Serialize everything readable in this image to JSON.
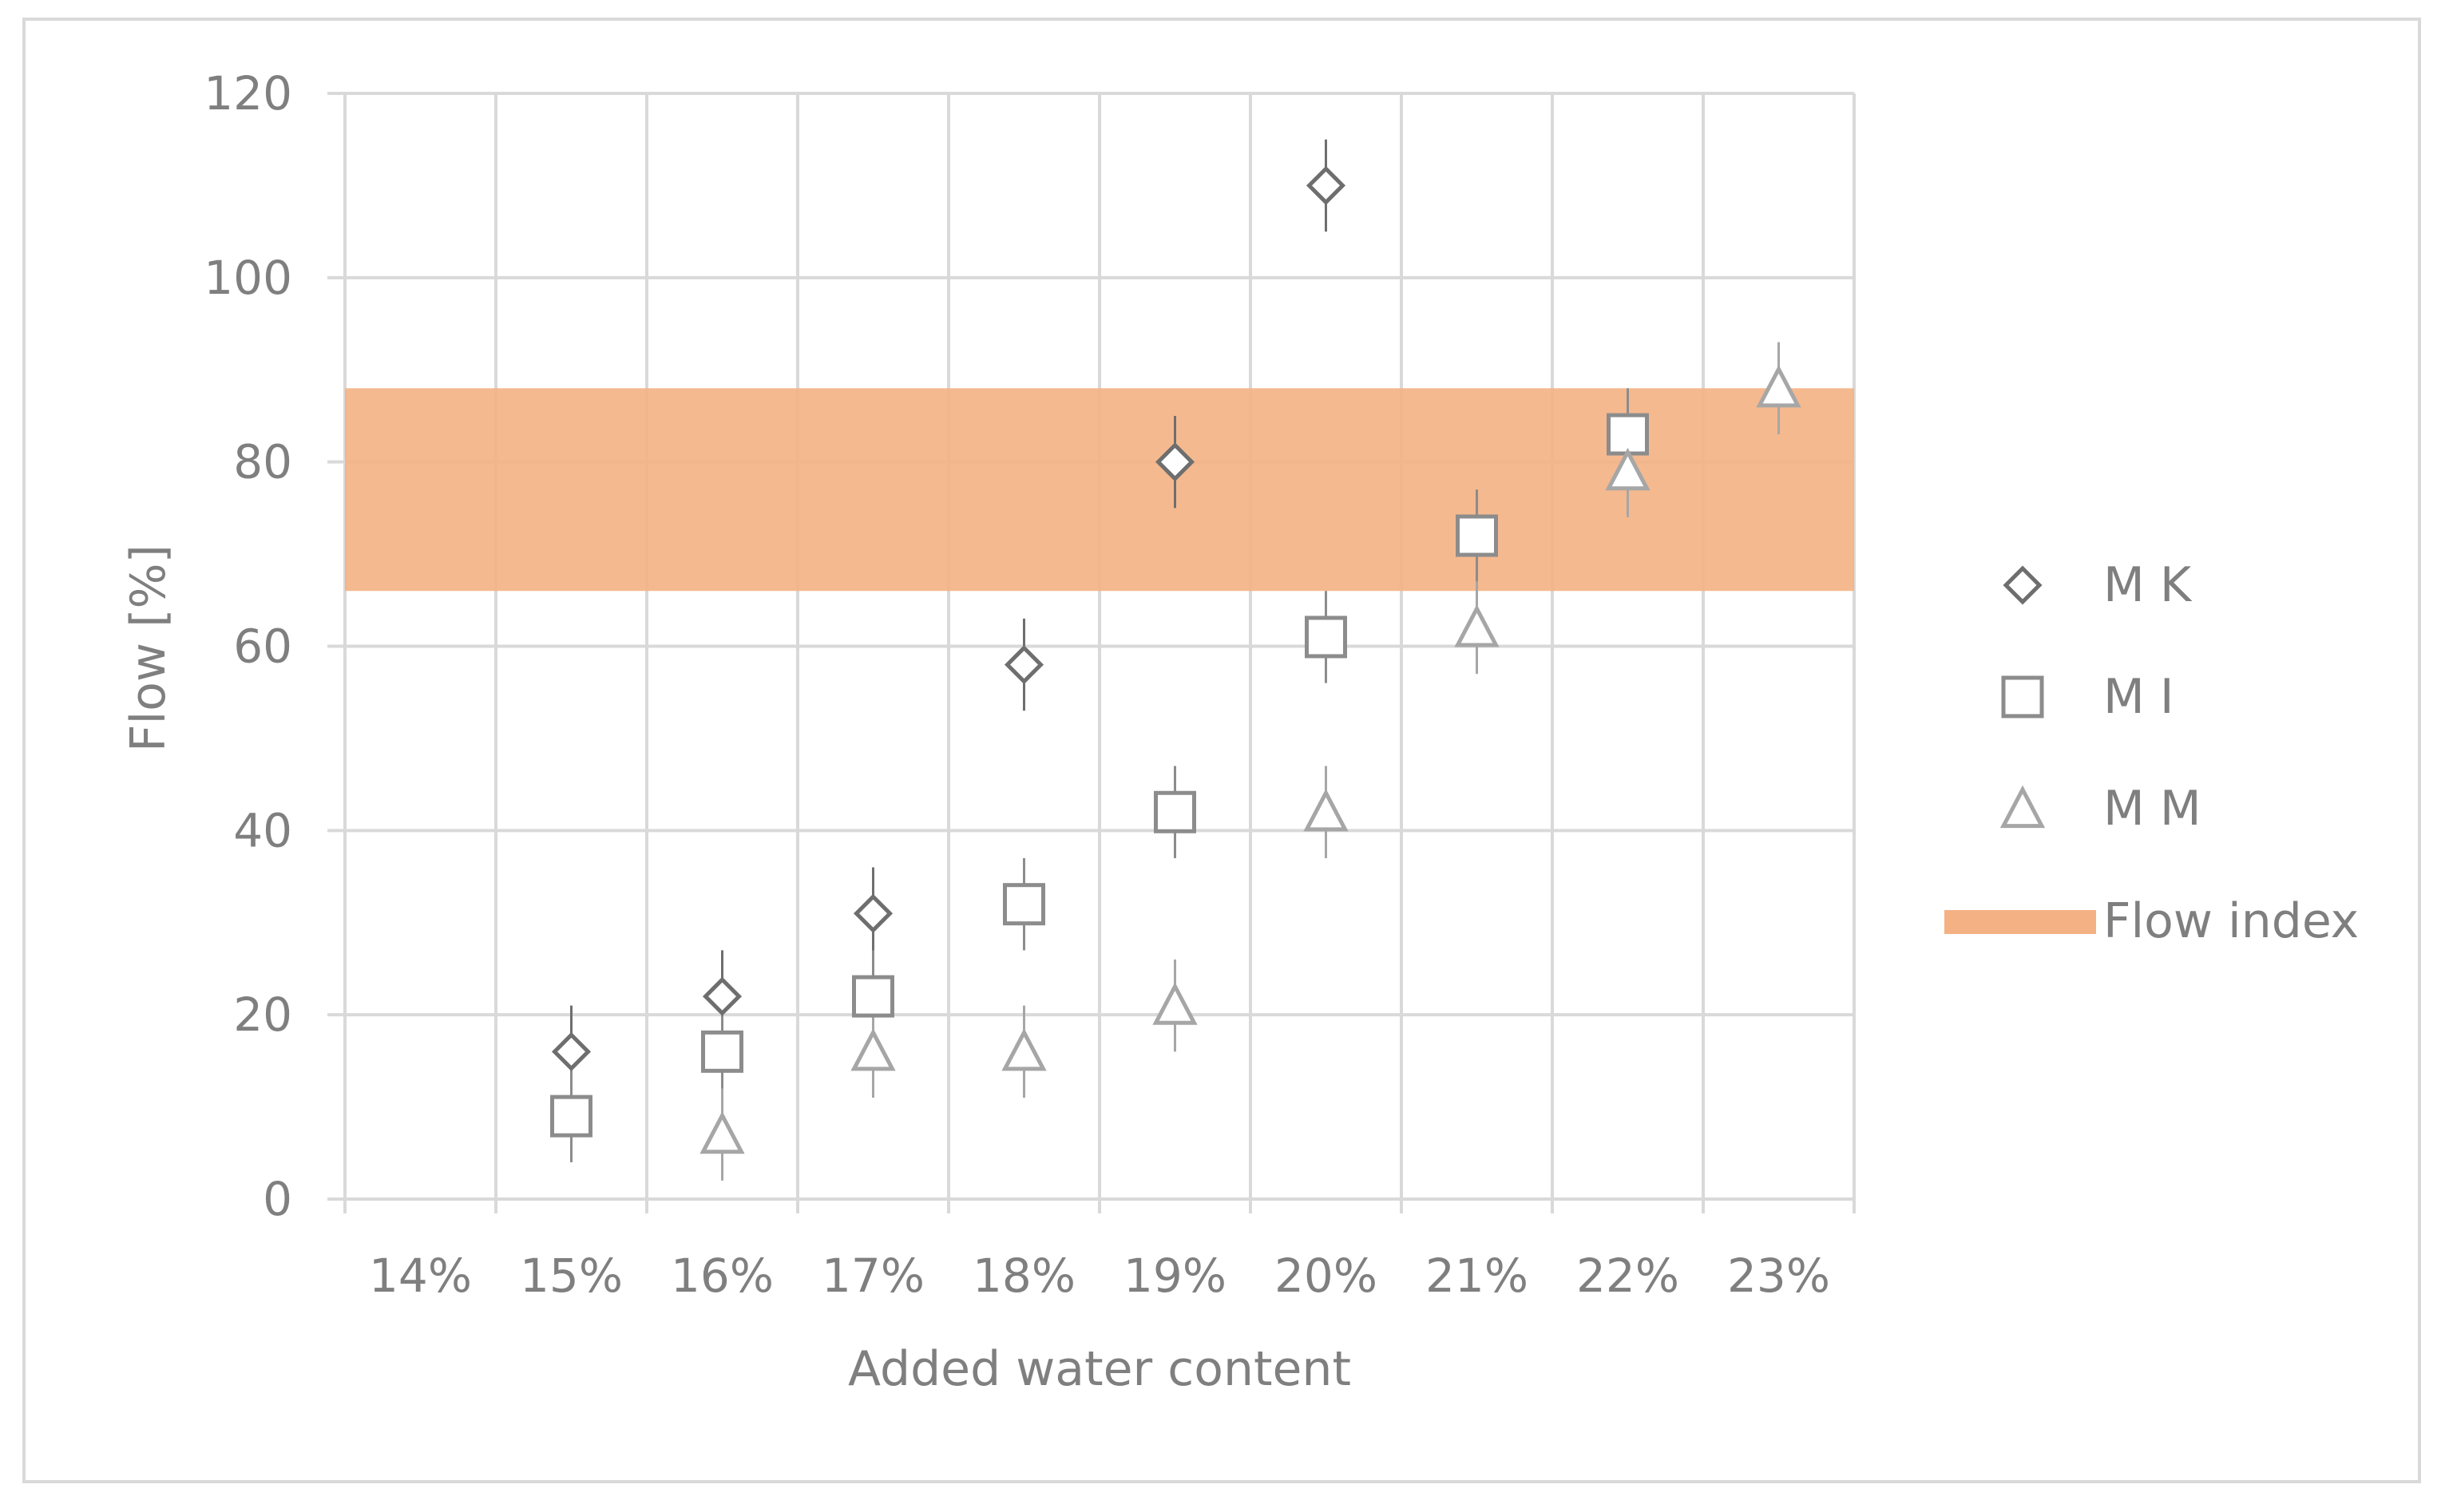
{
  "chart_data": {
    "type": "scatter",
    "title": "",
    "xlabel": "Added water content",
    "ylabel": "Flow [%]",
    "categories": [
      "14%",
      "15%",
      "16%",
      "17%",
      "18%",
      "19%",
      "20%",
      "21%",
      "22%",
      "23%"
    ],
    "ylim": [
      0,
      120
    ],
    "yticks": [
      "0",
      "20",
      "40",
      "60",
      "80",
      "100",
      "120"
    ],
    "grid": true,
    "legend_position": "right",
    "band": {
      "name": "Flow index",
      "y_from": 66,
      "y_to": 88,
      "color": "#f4b183"
    },
    "series": [
      {
        "name": "M K",
        "marker": "diamond",
        "color": "#6e6e6e",
        "points": [
          {
            "x": "15%",
            "y": 16,
            "err": 5
          },
          {
            "x": "16%",
            "y": 22,
            "err": 5
          },
          {
            "x": "17%",
            "y": 31,
            "err": 5
          },
          {
            "x": "18%",
            "y": 58,
            "err": 5
          },
          {
            "x": "19%",
            "y": 80,
            "err": 5
          },
          {
            "x": "20%",
            "y": 110,
            "err": 5
          }
        ]
      },
      {
        "name": "M I",
        "marker": "square",
        "color": "#8c8c8c",
        "points": [
          {
            "x": "15%",
            "y": 9,
            "err": 5
          },
          {
            "x": "16%",
            "y": 16,
            "err": 5
          },
          {
            "x": "17%",
            "y": 22,
            "err": 5
          },
          {
            "x": "18%",
            "y": 32,
            "err": 5
          },
          {
            "x": "19%",
            "y": 42,
            "err": 5
          },
          {
            "x": "20%",
            "y": 61,
            "err": 5
          },
          {
            "x": "21%",
            "y": 72,
            "err": 5
          },
          {
            "x": "22%",
            "y": 83,
            "err": 5
          }
        ]
      },
      {
        "name": "M M",
        "marker": "triangle",
        "color": "#a6a6a6",
        "points": [
          {
            "x": "16%",
            "y": 7,
            "err": 5
          },
          {
            "x": "17%",
            "y": 16,
            "err": 5
          },
          {
            "x": "18%",
            "y": 16,
            "err": 5
          },
          {
            "x": "19%",
            "y": 21,
            "err": 5
          },
          {
            "x": "20%",
            "y": 42,
            "err": 5
          },
          {
            "x": "21%",
            "y": 62,
            "err": 5
          },
          {
            "x": "22%",
            "y": 79,
            "err": 5
          },
          {
            "x": "23%",
            "y": 88,
            "err": 5
          }
        ]
      }
    ]
  }
}
